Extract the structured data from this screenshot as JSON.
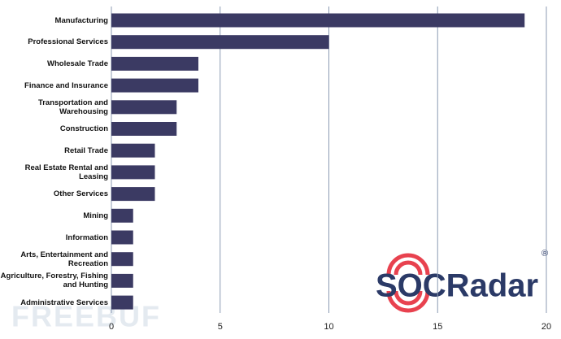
{
  "chart_data": {
    "type": "bar",
    "orientation": "horizontal",
    "categories": [
      "Manufacturing",
      "Professional Services",
      "Wholesale Trade",
      "Finance and Insurance",
      "Transportation and Warehousing",
      "Construction",
      "Retail Trade",
      "Real Estate Rental and Leasing",
      "Other Services",
      "Mining",
      "Information",
      "Arts, Entertainment and Recreation",
      "Agriculture, Forestry, Fishing and Hunting",
      "Administrative Services"
    ],
    "values": [
      19,
      10,
      4,
      4,
      3,
      3,
      2,
      2,
      2,
      1,
      1,
      1,
      1,
      1
    ],
    "color": "#3b3a63",
    "xlim": [
      0,
      20
    ],
    "xticks": [
      0,
      5,
      10,
      15,
      20
    ],
    "grid": true,
    "logo": "SOCRadar",
    "logo_mark": "®",
    "watermark": "FREEBUF"
  }
}
